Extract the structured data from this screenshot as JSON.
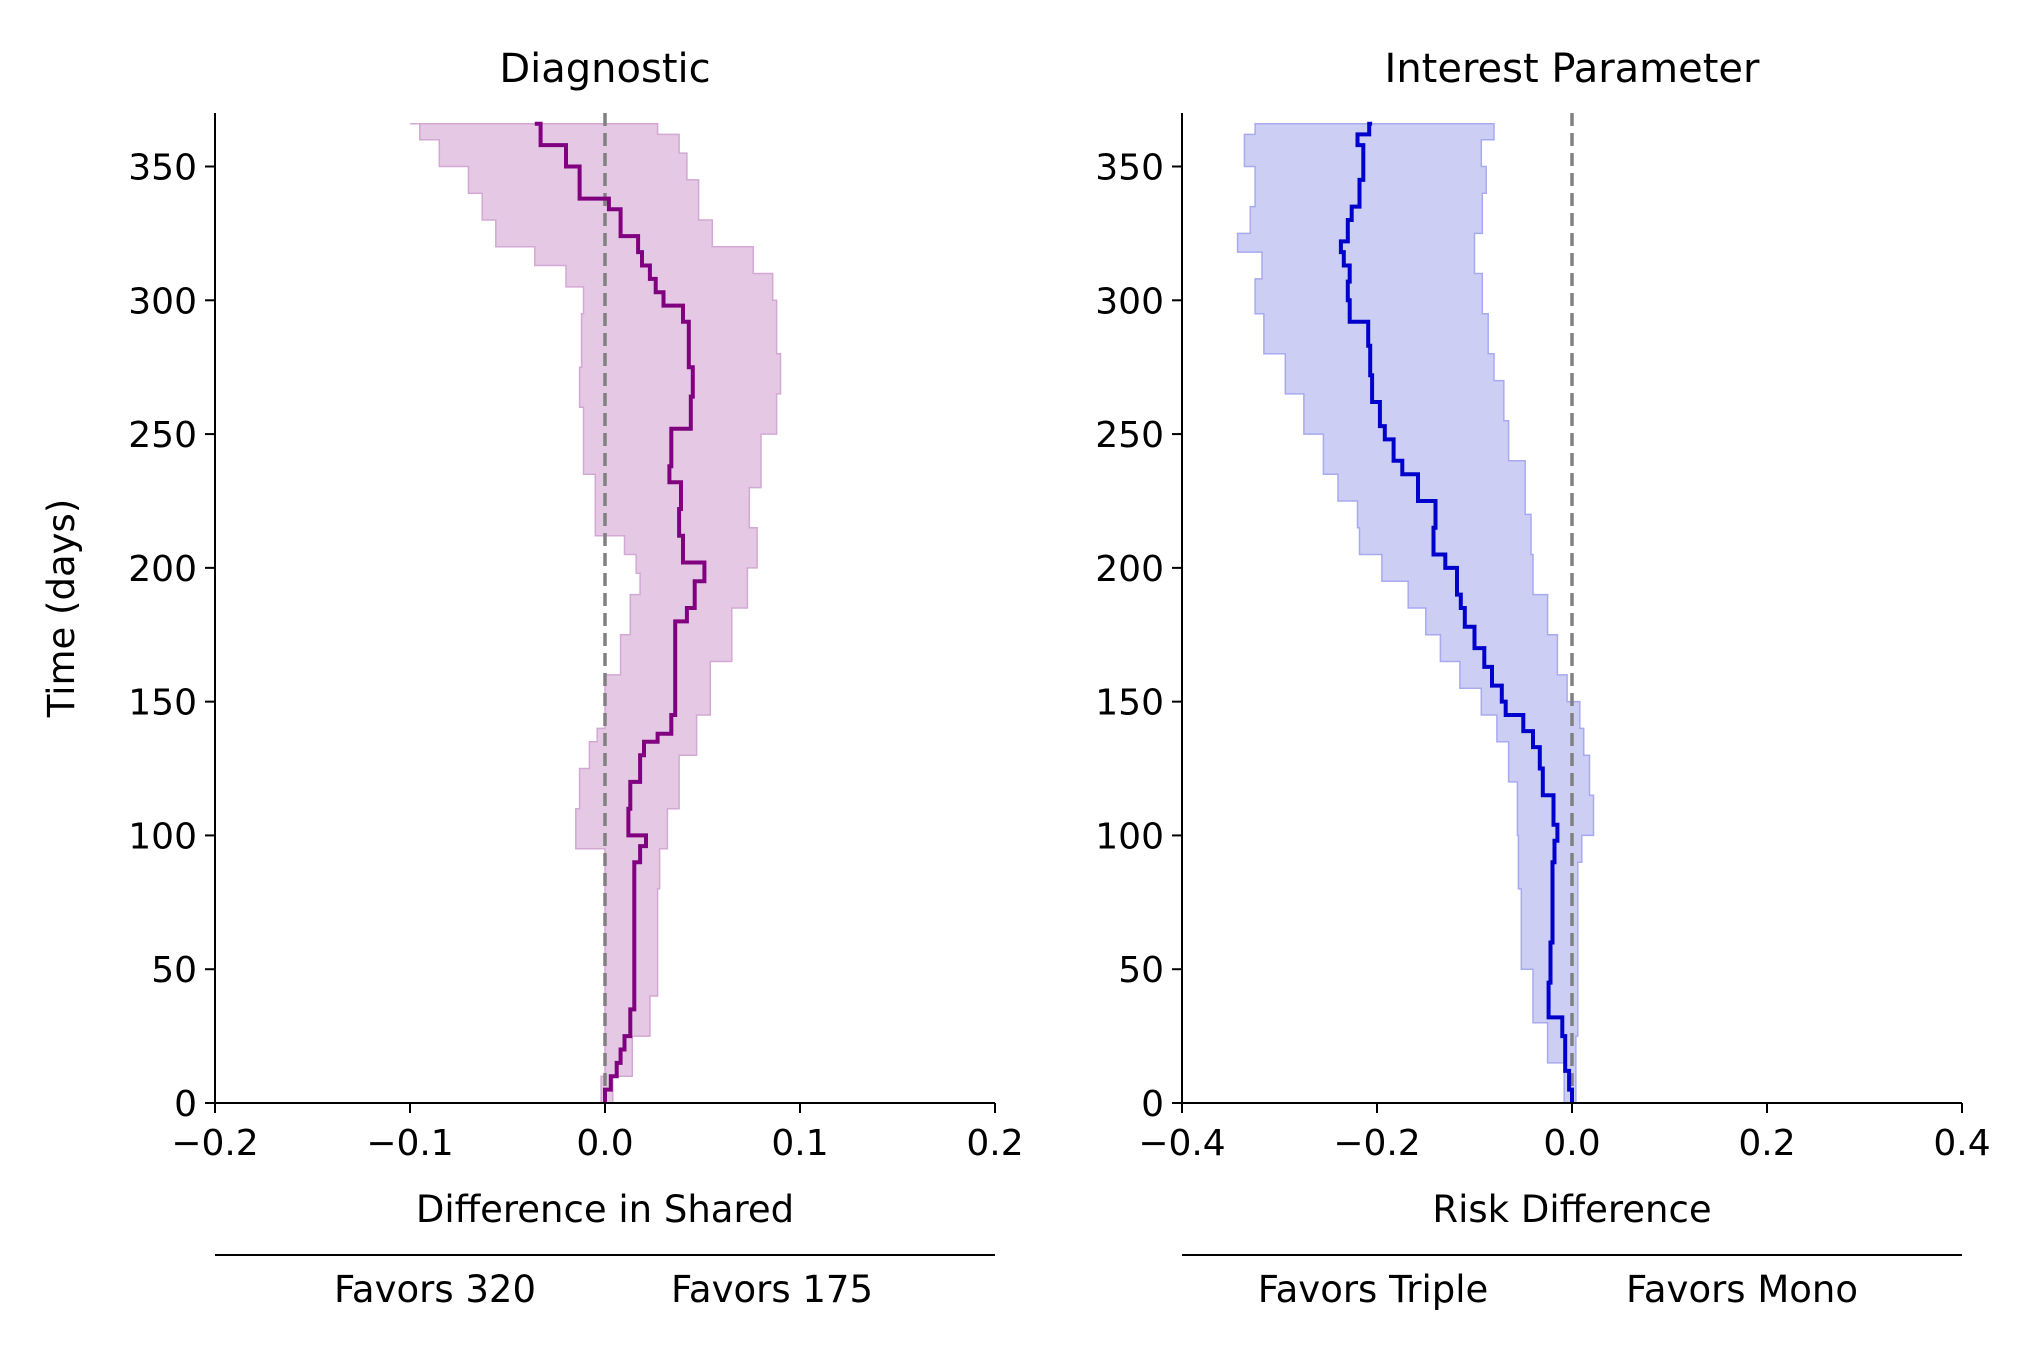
{
  "chart_data": [
    {
      "type": "line",
      "title": "Diagnostic",
      "xlabel": "Difference in Shared",
      "ylabel": "Time (days)",
      "xlim": [
        -0.2,
        0.2
      ],
      "ylim": [
        0,
        370
      ],
      "xticks": [
        -0.2,
        -0.1,
        0.0,
        0.1,
        0.2
      ],
      "xtick_labels": [
        "−0.2",
        "−0.1",
        "0.0",
        "0.1",
        "0.2"
      ],
      "yticks": [
        0,
        50,
        100,
        150,
        200,
        250,
        300,
        350
      ],
      "ytick_labels": [
        "0",
        "50",
        "100",
        "150",
        "200",
        "250",
        "300",
        "350"
      ],
      "reference_line_x": 0,
      "favors_left": "Favors 320",
      "favors_right": "Favors 175",
      "grid": false,
      "line_color": "#800080",
      "band_color": "#e4c8e4",
      "band_edge_color": "#d4a8d4",
      "ref_color": "#808080",
      "estimate": [
        [
          0,
          0.0
        ],
        [
          5,
          0.003
        ],
        [
          10,
          0.006
        ],
        [
          15,
          0.008
        ],
        [
          20,
          0.01
        ],
        [
          25,
          0.013
        ],
        [
          35,
          0.015
        ],
        [
          50,
          0.015
        ],
        [
          70,
          0.015
        ],
        [
          85,
          0.015
        ],
        [
          90,
          0.018
        ],
        [
          96,
          0.021
        ],
        [
          100,
          0.012
        ],
        [
          110,
          0.013
        ],
        [
          120,
          0.018
        ],
        [
          130,
          0.02
        ],
        [
          135,
          0.027
        ],
        [
          138,
          0.034
        ],
        [
          145,
          0.036
        ],
        [
          160,
          0.036
        ],
        [
          170,
          0.036
        ],
        [
          180,
          0.042
        ],
        [
          185,
          0.046
        ],
        [
          195,
          0.051
        ],
        [
          202,
          0.04
        ],
        [
          212,
          0.038
        ],
        [
          222,
          0.039
        ],
        [
          232,
          0.033
        ],
        [
          238,
          0.034
        ],
        [
          252,
          0.044
        ],
        [
          264,
          0.045
        ],
        [
          275,
          0.043
        ],
        [
          292,
          0.04
        ],
        [
          298,
          0.03
        ],
        [
          303,
          0.026
        ],
        [
          308,
          0.023
        ],
        [
          313,
          0.019
        ],
        [
          318,
          0.017
        ],
        [
          324,
          0.008
        ],
        [
          334,
          0.002
        ],
        [
          338,
          -0.013
        ],
        [
          350,
          -0.02
        ],
        [
          358,
          -0.033
        ],
        [
          366,
          -0.036
        ]
      ],
      "ci_lower": [
        [
          0,
          -0.002
        ],
        [
          10,
          0.0
        ],
        [
          40,
          0.0
        ],
        [
          80,
          0.0
        ],
        [
          95,
          -0.015
        ],
        [
          110,
          -0.013
        ],
        [
          125,
          -0.008
        ],
        [
          135,
          -0.004
        ],
        [
          140,
          0.0
        ],
        [
          160,
          0.008
        ],
        [
          175,
          0.013
        ],
        [
          190,
          0.018
        ],
        [
          198,
          0.016
        ],
        [
          205,
          0.01
        ],
        [
          212,
          -0.005
        ],
        [
          235,
          -0.011
        ],
        [
          260,
          -0.013
        ],
        [
          275,
          -0.012
        ],
        [
          295,
          -0.011
        ],
        [
          305,
          -0.02
        ],
        [
          313,
          -0.036
        ],
        [
          320,
          -0.056
        ],
        [
          330,
          -0.063
        ],
        [
          340,
          -0.07
        ],
        [
          350,
          -0.085
        ],
        [
          360,
          -0.095
        ],
        [
          366,
          -0.1
        ]
      ],
      "ci_upper": [
        [
          0,
          0.004
        ],
        [
          10,
          0.014
        ],
        [
          25,
          0.023
        ],
        [
          40,
          0.027
        ],
        [
          80,
          0.028
        ],
        [
          95,
          0.032
        ],
        [
          110,
          0.038
        ],
        [
          130,
          0.047
        ],
        [
          145,
          0.054
        ],
        [
          165,
          0.065
        ],
        [
          185,
          0.073
        ],
        [
          200,
          0.078
        ],
        [
          215,
          0.074
        ],
        [
          230,
          0.08
        ],
        [
          250,
          0.088
        ],
        [
          265,
          0.09
        ],
        [
          280,
          0.088
        ],
        [
          300,
          0.086
        ],
        [
          310,
          0.076
        ],
        [
          320,
          0.055
        ],
        [
          330,
          0.048
        ],
        [
          345,
          0.042
        ],
        [
          355,
          0.038
        ],
        [
          362,
          0.027
        ],
        [
          366,
          0.027
        ]
      ]
    },
    {
      "type": "line",
      "title": "Interest Parameter",
      "xlabel": "Risk Difference",
      "ylabel": "",
      "xlim": [
        -0.4,
        0.4
      ],
      "ylim": [
        0,
        370
      ],
      "xticks": [
        -0.4,
        -0.2,
        0.0,
        0.2,
        0.4
      ],
      "xtick_labels": [
        "−0.4",
        "−0.2",
        "0.0",
        "0.2",
        "0.4"
      ],
      "yticks": [
        0,
        50,
        100,
        150,
        200,
        250,
        300,
        350
      ],
      "ytick_labels": [
        "0",
        "50",
        "100",
        "150",
        "200",
        "250",
        "300",
        "350"
      ],
      "reference_line_x": 0,
      "favors_left": "Favors Triple",
      "favors_right": "Favors Mono",
      "grid": false,
      "line_color": "#0000cd",
      "band_color": "#cccef3",
      "band_edge_color": "#a8aaf0",
      "ref_color": "#808080",
      "estimate": [
        [
          0,
          0.0
        ],
        [
          5,
          -0.003
        ],
        [
          12,
          -0.007
        ],
        [
          25,
          -0.01
        ],
        [
          32,
          -0.024
        ],
        [
          45,
          -0.022
        ],
        [
          60,
          -0.02
        ],
        [
          80,
          -0.02
        ],
        [
          90,
          -0.018
        ],
        [
          98,
          -0.015
        ],
        [
          104,
          -0.019
        ],
        [
          115,
          -0.03
        ],
        [
          125,
          -0.033
        ],
        [
          133,
          -0.04
        ],
        [
          139,
          -0.05
        ],
        [
          145,
          -0.068
        ],
        [
          150,
          -0.072
        ],
        [
          156,
          -0.082
        ],
        [
          163,
          -0.09
        ],
        [
          170,
          -0.1
        ],
        [
          178,
          -0.11
        ],
        [
          185,
          -0.114
        ],
        [
          190,
          -0.118
        ],
        [
          200,
          -0.13
        ],
        [
          205,
          -0.142
        ],
        [
          215,
          -0.14
        ],
        [
          225,
          -0.158
        ],
        [
          235,
          -0.174
        ],
        [
          240,
          -0.183
        ],
        [
          248,
          -0.192
        ],
        [
          253,
          -0.197
        ],
        [
          262,
          -0.205
        ],
        [
          272,
          -0.207
        ],
        [
          283,
          -0.209
        ],
        [
          292,
          -0.228
        ],
        [
          300,
          -0.23
        ],
        [
          307,
          -0.228
        ],
        [
          313,
          -0.234
        ],
        [
          318,
          -0.237
        ],
        [
          322,
          -0.23
        ],
        [
          330,
          -0.226
        ],
        [
          335,
          -0.218
        ],
        [
          345,
          -0.214
        ],
        [
          358,
          -0.22
        ],
        [
          362,
          -0.208
        ],
        [
          366,
          -0.205
        ]
      ],
      "ci_lower": [
        [
          0,
          -0.008
        ],
        [
          15,
          -0.025
        ],
        [
          30,
          -0.04
        ],
        [
          50,
          -0.052
        ],
        [
          80,
          -0.055
        ],
        [
          100,
          -0.056
        ],
        [
          120,
          -0.065
        ],
        [
          135,
          -0.077
        ],
        [
          145,
          -0.093
        ],
        [
          155,
          -0.115
        ],
        [
          165,
          -0.135
        ],
        [
          175,
          -0.15
        ],
        [
          185,
          -0.168
        ],
        [
          195,
          -0.195
        ],
        [
          205,
          -0.218
        ],
        [
          215,
          -0.22
        ],
        [
          225,
          -0.24
        ],
        [
          235,
          -0.255
        ],
        [
          250,
          -0.275
        ],
        [
          265,
          -0.294
        ],
        [
          280,
          -0.316
        ],
        [
          295,
          -0.325
        ],
        [
          308,
          -0.318
        ],
        [
          318,
          -0.343
        ],
        [
          325,
          -0.33
        ],
        [
          335,
          -0.325
        ],
        [
          350,
          -0.336
        ],
        [
          362,
          -0.325
        ],
        [
          366,
          -0.323
        ]
      ],
      "ci_upper": [
        [
          0,
          0.004
        ],
        [
          25,
          0.006
        ],
        [
          60,
          0.006
        ],
        [
          90,
          0.01
        ],
        [
          100,
          0.022
        ],
        [
          115,
          0.018
        ],
        [
          130,
          0.012
        ],
        [
          140,
          0.008
        ],
        [
          150,
          -0.005
        ],
        [
          160,
          -0.015
        ],
        [
          175,
          -0.025
        ],
        [
          190,
          -0.04
        ],
        [
          205,
          -0.042
        ],
        [
          220,
          -0.048
        ],
        [
          240,
          -0.065
        ],
        [
          255,
          -0.07
        ],
        [
          270,
          -0.08
        ],
        [
          280,
          -0.086
        ],
        [
          295,
          -0.092
        ],
        [
          310,
          -0.1
        ],
        [
          325,
          -0.092
        ],
        [
          340,
          -0.088
        ],
        [
          350,
          -0.093
        ],
        [
          360,
          -0.08
        ],
        [
          366,
          -0.082
        ]
      ]
    }
  ]
}
